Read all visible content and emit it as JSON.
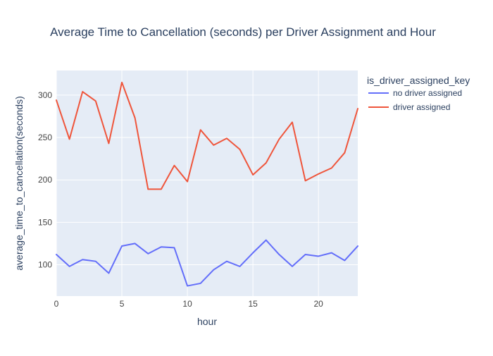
{
  "chart_data": {
    "type": "line",
    "title": "Average Time to Cancellation (seconds) per Driver Assignment and Hour",
    "xlabel": "hour",
    "ylabel": "average_time_to_cancellation(seconds)",
    "xlim": [
      0,
      23
    ],
    "ylim": [
      63,
      329
    ],
    "x_ticks": [
      0,
      5,
      10,
      15,
      20
    ],
    "y_ticks": [
      100,
      150,
      200,
      250,
      300
    ],
    "grid": true,
    "legend_title": "is_driver_assigned_key",
    "legend_position": "right",
    "x": [
      0,
      1,
      2,
      3,
      4,
      5,
      6,
      7,
      8,
      9,
      10,
      11,
      12,
      13,
      14,
      15,
      16,
      17,
      18,
      19,
      20,
      21,
      22,
      23
    ],
    "series": [
      {
        "name": "no driver assigned",
        "color": "#636efa",
        "values": [
          112,
          98,
          106,
          104,
          90,
          122,
          125,
          113,
          121,
          120,
          75,
          78,
          94,
          104,
          98,
          114,
          129,
          112,
          98,
          112,
          110,
          114,
          105,
          122
        ]
      },
      {
        "name": "driver assigned",
        "color": "#ef553b",
        "values": [
          294,
          248,
          304,
          293,
          243,
          315,
          273,
          189,
          189,
          217,
          198,
          259,
          241,
          249,
          236,
          206,
          220,
          248,
          268,
          199,
          207,
          214,
          232,
          284
        ]
      }
    ]
  },
  "colors": {
    "plot_background": "#e5ecf6",
    "grid": "#ffffff",
    "text": "#2a3f5f",
    "tick_text": "#444444"
  }
}
